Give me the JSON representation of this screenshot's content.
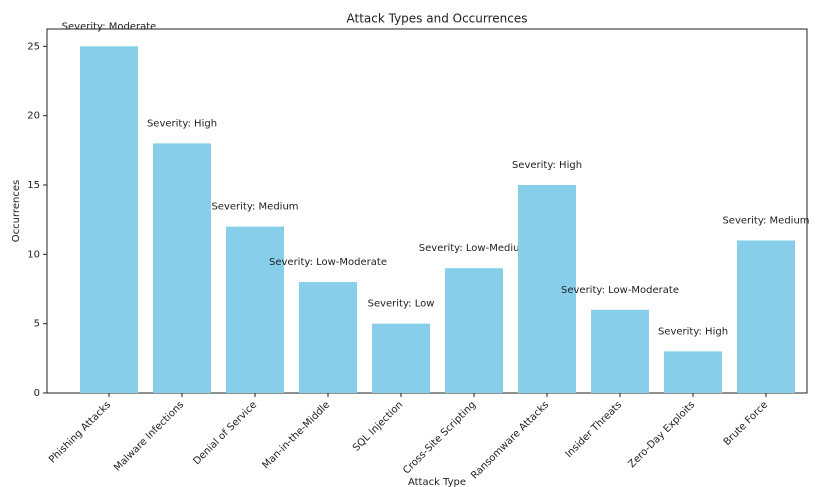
{
  "chart_data": {
    "type": "bar",
    "title": "Attack Types and Occurrences",
    "x_label": "Attack Type",
    "y_label": "Occurrences",
    "categories": [
      "Phishing Attacks",
      "Malware Infections",
      "Denial of Service",
      "Man-in-the-Middle",
      "SQL Injection",
      "Cross-Site Scripting",
      "Ransomware Attacks",
      "Insider Threats",
      "Zero-Day Exploits",
      "Brute Force"
    ],
    "values": [
      25,
      18,
      12,
      8,
      5,
      9,
      15,
      6,
      3,
      11
    ],
    "annotations": [
      "Severity: Moderate",
      "Severity: High",
      "Severity: Medium",
      "Severity: Low-Moderate",
      "Severity: Low",
      "Severity: Low-Medium",
      "Severity: High",
      "Severity: Low-Moderate",
      "Severity: High",
      "Severity: Medium"
    ],
    "color": "#87ceeb",
    "ylim": [
      0,
      26.25
    ],
    "yticks": [
      0,
      5,
      10,
      15,
      20,
      25
    ],
    "grid": false
  }
}
